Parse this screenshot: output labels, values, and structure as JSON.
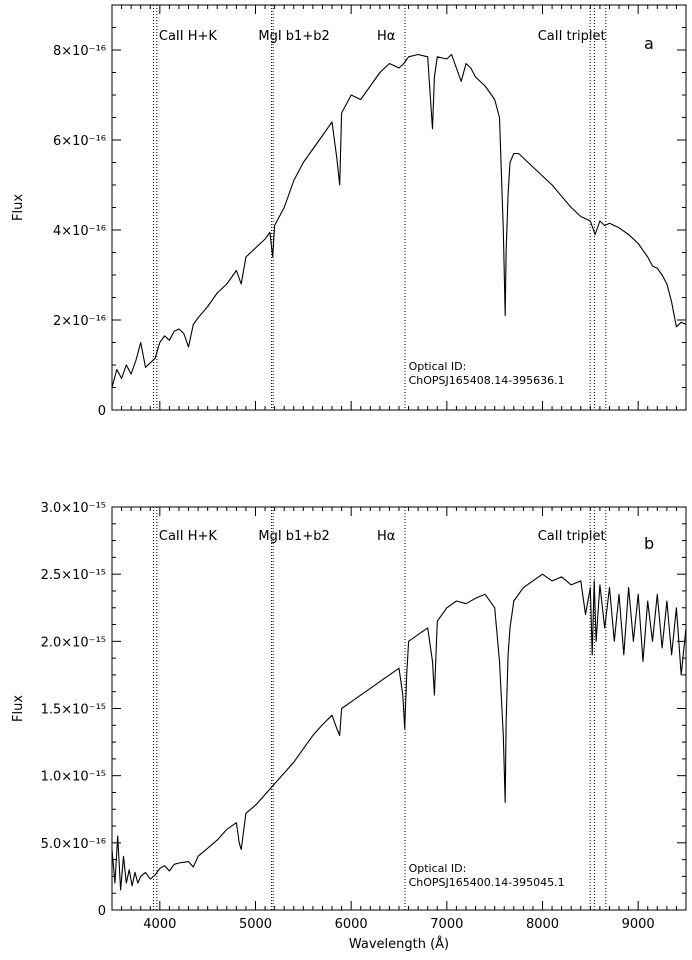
{
  "chart_data": [
    {
      "type": "line",
      "panel_label": "a",
      "xlabel": "",
      "ylabel": "Flux",
      "xlim": [
        3500,
        9500
      ],
      "ylim": [
        0,
        9e-16
      ],
      "x_ticks": [
        4000,
        5000,
        6000,
        7000,
        8000,
        9000
      ],
      "x_tick_labels": [
        "",
        "",
        "",
        "",
        "",
        ""
      ],
      "y_ticks": [
        0,
        2e-16,
        4e-16,
        6e-16,
        8e-16
      ],
      "y_tick_labels": [
        "0",
        "2×10⁻¹⁶",
        "4×10⁻¹⁶",
        "6×10⁻¹⁶",
        "8×10⁻¹⁶"
      ],
      "reference_lines": [
        {
          "x": 3934,
          "style": "dotted"
        },
        {
          "x": 3969,
          "style": "dotted"
        },
        {
          "x": 5167,
          "style": "dotted"
        },
        {
          "x": 5184,
          "style": "dotted"
        },
        {
          "x": 6563,
          "style": "dotted"
        },
        {
          "x": 8498,
          "style": "dotted"
        },
        {
          "x": 8542,
          "style": "dotted"
        },
        {
          "x": 8662,
          "style": "dotted"
        }
      ],
      "line_labels": [
        {
          "text": "CaII H+K",
          "x": 3990
        },
        {
          "text": "MgI b1+b2",
          "x": 5030
        },
        {
          "text": "Hα",
          "x": 6270
        },
        {
          "text": "CaII triplet",
          "x": 7950
        }
      ],
      "annotation": [
        "Optical ID:",
        "ChOPSJ165408.14-395636.1"
      ],
      "annotation_x": 6600,
      "series": [
        {
          "x": [
            3500,
            3550,
            3600,
            3650,
            3700,
            3750,
            3800,
            3850,
            3900,
            3950,
            4000,
            4050,
            4100,
            4150,
            4200,
            4250,
            4300,
            4350,
            4400,
            4500,
            4600,
            4700,
            4800,
            4850,
            4900,
            5000,
            5100,
            5150,
            5180,
            5200,
            5300,
            5400,
            5500,
            5600,
            5700,
            5800,
            5850,
            5880,
            5900,
            6000,
            6100,
            6200,
            6300,
            6400,
            6500,
            6550,
            6600,
            6700,
            6800,
            6820,
            6850,
            6870,
            6900,
            7000,
            7050,
            7100,
            7150,
            7200,
            7250,
            7300,
            7400,
            7500,
            7550,
            7590,
            7610,
            7620,
            7640,
            7660,
            7700,
            7750,
            7800,
            7900,
            8000,
            8100,
            8200,
            8300,
            8400,
            8500,
            8550,
            8600,
            8650,
            8700,
            8800,
            8900,
            9000,
            9100,
            9150,
            9200,
            9250,
            9300,
            9350,
            9400,
            9450,
            9500
          ],
          "y": [
            5e-17,
            9e-17,
            7e-17,
            1e-16,
            8e-17,
            1.1e-16,
            1.5e-16,
            9.5e-17,
            1.05e-16,
            1.15e-16,
            1.5e-16,
            1.65e-16,
            1.55e-16,
            1.75e-16,
            1.8e-16,
            1.7e-16,
            1.4e-16,
            1.9e-16,
            2.05e-16,
            2.3e-16,
            2.6e-16,
            2.8e-16,
            3.1e-16,
            2.8e-16,
            3.4e-16,
            3.6e-16,
            3.8e-16,
            3.95e-16,
            3.4e-16,
            4.1e-16,
            4.5e-16,
            5.1e-16,
            5.5e-16,
            5.8e-16,
            6.1e-16,
            6.4e-16,
            5.6e-16,
            5e-16,
            6.6e-16,
            7e-16,
            6.9e-16,
            7.2e-16,
            7.5e-16,
            7.7e-16,
            7.6e-16,
            7.7e-16,
            7.85e-16,
            7.9e-16,
            7.85e-16,
            7.2e-16,
            6.25e-16,
            7.4e-16,
            7.85e-16,
            7.8e-16,
            7.9e-16,
            7.6e-16,
            7.3e-16,
            7.7e-16,
            7.6e-16,
            7.4e-16,
            7.2e-16,
            6.9e-16,
            6.5e-16,
            4e-16,
            2.1e-16,
            3.5e-16,
            4.8e-16,
            5.5e-16,
            5.7e-16,
            5.7e-16,
            5.6e-16,
            5.4e-16,
            5.2e-16,
            5e-16,
            4.75e-16,
            4.5e-16,
            4.3e-16,
            4.2e-16,
            3.9e-16,
            4.2e-16,
            4.1e-16,
            4.15e-16,
            4.05e-16,
            3.9e-16,
            3.7e-16,
            3.4e-16,
            3.2e-16,
            3.15e-16,
            3e-16,
            2.8e-16,
            2.4e-16,
            1.85e-16,
            1.95e-16,
            1.9e-16
          ]
        }
      ]
    },
    {
      "type": "line",
      "panel_label": "b",
      "xlabel": "Wavelength (Å)",
      "ylabel": "Flux",
      "xlim": [
        3500,
        9500
      ],
      "ylim": [
        0,
        3e-15
      ],
      "x_ticks": [
        4000,
        5000,
        6000,
        7000,
        8000,
        9000
      ],
      "x_tick_labels": [
        "4000",
        "5000",
        "6000",
        "7000",
        "8000",
        "9000"
      ],
      "y_ticks": [
        0,
        5e-16,
        1e-15,
        1.5e-15,
        2e-15,
        2.5e-15,
        3e-15
      ],
      "y_tick_labels": [
        "0",
        "5.0×10⁻¹⁶",
        "1.0×10⁻¹⁵",
        "1.5×10⁻¹⁵",
        "2.0×10⁻¹⁵",
        "2.5×10⁻¹⁵",
        "3.0×10⁻¹⁵"
      ],
      "reference_lines": [
        {
          "x": 3934,
          "style": "dotted"
        },
        {
          "x": 3969,
          "style": "dotted"
        },
        {
          "x": 5167,
          "style": "dotted"
        },
        {
          "x": 5184,
          "style": "dotted"
        },
        {
          "x": 6563,
          "style": "dotted"
        },
        {
          "x": 8498,
          "style": "dotted"
        },
        {
          "x": 8542,
          "style": "dotted"
        },
        {
          "x": 8662,
          "style": "dotted"
        }
      ],
      "line_labels": [
        {
          "text": "CaII H+K",
          "x": 3990
        },
        {
          "text": "MgI b1+b2",
          "x": 5030
        },
        {
          "text": "Hα",
          "x": 6270
        },
        {
          "text": "CaII triplet",
          "x": 7950
        }
      ],
      "annotation": [
        "Optical ID:",
        "ChOPSJ165400.14-395045.1"
      ],
      "annotation_x": 6600,
      "series": [
        {
          "x": [
            3500,
            3530,
            3560,
            3590,
            3620,
            3650,
            3680,
            3710,
            3740,
            3770,
            3800,
            3850,
            3900,
            3950,
            4000,
            4050,
            4100,
            4150,
            4200,
            4300,
            4350,
            4400,
            4500,
            4600,
            4700,
            4800,
            4830,
            4850,
            4900,
            5000,
            5100,
            5200,
            5300,
            5400,
            5500,
            5600,
            5700,
            5800,
            5850,
            5880,
            5900,
            6000,
            6100,
            6200,
            6300,
            6400,
            6500,
            6540,
            6560,
            6580,
            6600,
            6700,
            6800,
            6850,
            6870,
            6900,
            7000,
            7100,
            7200,
            7300,
            7400,
            7500,
            7550,
            7590,
            7610,
            7620,
            7640,
            7660,
            7700,
            7800,
            7900,
            8000,
            8100,
            8200,
            8300,
            8400,
            8450,
            8500,
            8520,
            8540,
            8560,
            8600,
            8650,
            8700,
            8750,
            8800,
            8850,
            8900,
            8950,
            9000,
            9050,
            9100,
            9150,
            9200,
            9250,
            9300,
            9350,
            9400,
            9450,
            9500
          ],
          "y": [
            4.5e-16,
            2e-16,
            5.5e-16,
            1.5e-16,
            4e-16,
            2e-16,
            3e-16,
            1.8e-16,
            2.8e-16,
            2e-16,
            2.5e-16,
            2.8e-16,
            2.3e-16,
            2.6e-16,
            3.1e-16,
            3.3e-16,
            2.9e-16,
            3.4e-16,
            3.5e-16,
            3.6e-16,
            3.2e-16,
            4e-16,
            4.6e-16,
            5.2e-16,
            6e-16,
            6.5e-16,
            5e-16,
            4.5e-16,
            7.2e-16,
            7.8e-16,
            8.6e-16,
            9.4e-16,
            1.02e-15,
            1.1e-15,
            1.2e-15,
            1.3e-15,
            1.38e-15,
            1.45e-15,
            1.35e-15,
            1.3e-15,
            1.5e-15,
            1.55e-15,
            1.6e-15,
            1.65e-15,
            1.7e-15,
            1.75e-15,
            1.8e-15,
            1.6e-15,
            1.35e-15,
            1.75e-15,
            2e-15,
            2.05e-15,
            2.1e-15,
            1.85e-15,
            1.6e-15,
            2.15e-15,
            2.25e-15,
            2.3e-15,
            2.28e-15,
            2.32e-15,
            2.35e-15,
            2.25e-15,
            1.85e-15,
            1.3e-15,
            8e-16,
            1.4e-15,
            1.9e-15,
            2.1e-15,
            2.3e-15,
            2.4e-15,
            2.45e-15,
            2.5e-15,
            2.45e-15,
            2.48e-15,
            2.42e-15,
            2.45e-15,
            2.2e-15,
            2.4e-15,
            1.9e-15,
            2.45e-15,
            2e-15,
            2.42e-15,
            2.1e-15,
            2.4e-15,
            2e-15,
            2.35e-15,
            1.9e-15,
            2.4e-15,
            2e-15,
            2.35e-15,
            1.85e-15,
            2.3e-15,
            2e-15,
            2.35e-15,
            1.95e-15,
            2.3e-15,
            1.9e-15,
            2.25e-15,
            1.75e-15,
            2.1e-15
          ]
        }
      ]
    }
  ]
}
